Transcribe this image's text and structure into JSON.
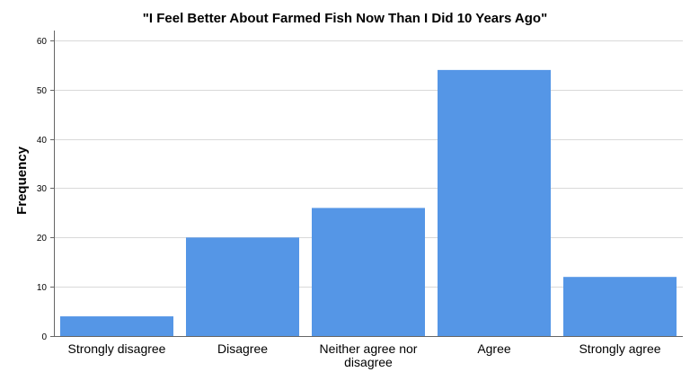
{
  "chart_data": {
    "type": "bar",
    "title": "\"I Feel Better About Farmed Fish Now Than I Did 10 Years Ago\"",
    "xlabel": "",
    "ylabel": "Frequency",
    "categories": [
      [
        "Strongly disagree"
      ],
      [
        "Disagree"
      ],
      [
        "Neither agree nor",
        "disagree"
      ],
      [
        "Agree"
      ],
      [
        "Strongly agree"
      ]
    ],
    "values": [
      4,
      20,
      26,
      54,
      12
    ],
    "ylim": [
      0,
      62
    ],
    "yticks": [
      0,
      10,
      20,
      30,
      40,
      50,
      60
    ],
    "grid": true,
    "colors": {
      "bar": "#5596E6",
      "grid": "#D9D9D9",
      "axis": "#666666",
      "text": "#000000"
    }
  }
}
